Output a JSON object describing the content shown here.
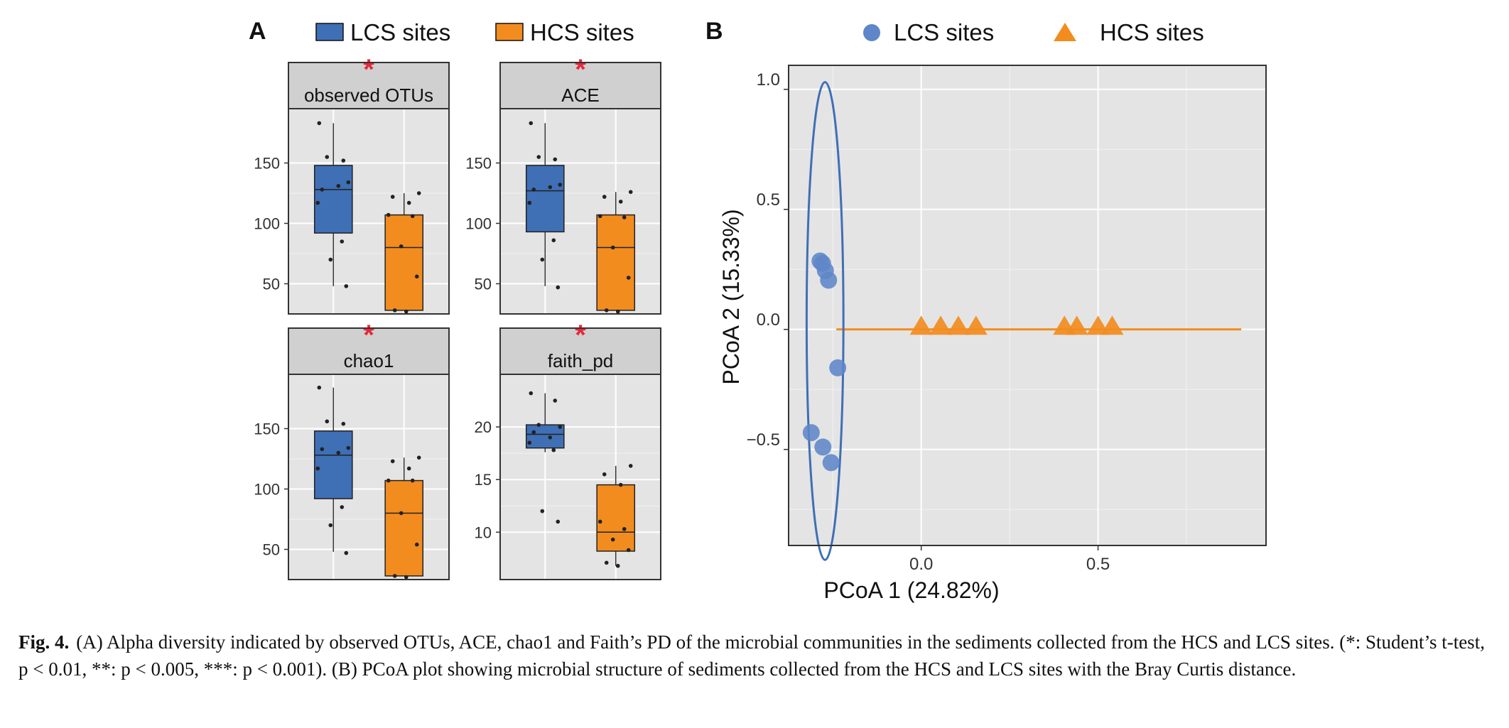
{
  "colors": {
    "lcs": "#3f6fb5",
    "hcs": "#f28c1f",
    "lcs_point": "#5e86c8",
    "star": "#e8263a",
    "panel_bg": "#e4e4e4",
    "strip_bg": "#d0d0d0"
  },
  "chart_data": [
    {
      "type": "box",
      "panel_letter": "A",
      "legend": [
        "LCS sites",
        "HCS sites"
      ],
      "legend_placement": "top",
      "grid": true,
      "facets": [
        {
          "title": "observed OTUs",
          "significance": "*",
          "ylim": [
            25,
            195
          ],
          "yticks": [
            50,
            100,
            150
          ],
          "ytick_labels": [
            "50",
            "100",
            "150"
          ],
          "series": [
            {
              "name": "LCS sites",
              "q1": 92,
              "median": 128,
              "q3": 148,
              "whisker_low": 48,
              "whisker_high": 183,
              "points": [
                183,
                152,
                155,
                134,
                128,
                131,
                117,
                85,
                70,
                48
              ]
            },
            {
              "name": "HCS sites",
              "q1": 28,
              "median": 80,
              "q3": 107,
              "whisker_low": 28,
              "whisker_high": 125,
              "points": [
                125,
                122,
                117,
                107,
                106,
                81,
                56,
                28,
                27
              ]
            }
          ]
        },
        {
          "title": "ACE",
          "significance": "*",
          "ylim": [
            25,
            195
          ],
          "yticks": [
            50,
            100,
            150
          ],
          "ytick_labels": [
            "50",
            "100",
            "150"
          ],
          "series": [
            {
              "name": "LCS sites",
              "q1": 93,
              "median": 127,
              "q3": 148,
              "whisker_low": 48,
              "whisker_high": 183,
              "points": [
                183,
                153,
                155,
                132,
                128,
                130,
                117,
                86,
                70,
                47
              ]
            },
            {
              "name": "HCS sites",
              "q1": 28,
              "median": 80,
              "q3": 107,
              "whisker_low": 28,
              "whisker_high": 126,
              "points": [
                126,
                122,
                118,
                106,
                105,
                80,
                55,
                28,
                27
              ]
            }
          ]
        },
        {
          "title": "chao1",
          "significance": "*",
          "ylim": [
            25,
            195
          ],
          "yticks": [
            50,
            100,
            150
          ],
          "ytick_labels": [
            "50",
            "100",
            "150"
          ],
          "series": [
            {
              "name": "LCS sites",
              "q1": 92,
              "median": 128,
              "q3": 148,
              "whisker_low": 48,
              "whisker_high": 184,
              "points": [
                184,
                154,
                156,
                134,
                133,
                130,
                117,
                85,
                70,
                47
              ]
            },
            {
              "name": "HCS sites",
              "q1": 28,
              "median": 80,
              "q3": 107,
              "whisker_low": 28,
              "whisker_high": 126,
              "points": [
                126,
                123,
                117,
                107,
                107,
                80,
                54,
                28,
                27
              ]
            }
          ]
        },
        {
          "title": "faith_pd",
          "significance": "*",
          "ylim": [
            5.5,
            25.0
          ],
          "yticks": [
            10,
            15,
            20
          ],
          "ytick_labels": [
            "10",
            "15",
            "20"
          ],
          "series": [
            {
              "name": "LCS sites",
              "q1": 18.0,
              "median": 19.3,
              "q3": 20.2,
              "whisker_low": 17.6,
              "whisker_high": 23.2,
              "points": [
                23.2,
                22.5,
                20.2,
                20.0,
                19.5,
                19.0,
                18.5,
                17.8,
                12.0,
                11.0
              ]
            },
            {
              "name": "HCS sites",
              "q1": 8.2,
              "median": 10.0,
              "q3": 14.5,
              "whisker_low": 6.8,
              "whisker_high": 16.3,
              "points": [
                16.3,
                15.5,
                14.5,
                11.0,
                10.3,
                9.3,
                8.3,
                7.1,
                6.8
              ]
            }
          ]
        }
      ]
    },
    {
      "type": "scatter",
      "panel_letter": "B",
      "legend": [
        "LCS sites",
        "HCS sites"
      ],
      "legend_placement": "top",
      "grid": true,
      "xlabel": "PCoA 1 (24.82%)",
      "ylabel": "PCoA 2 (15.33%)",
      "xlim": [
        -0.375,
        0.975
      ],
      "ylim": [
        -0.9,
        1.1
      ],
      "xticks": [
        0.0,
        0.5
      ],
      "xtick_labels": [
        "0.0",
        "0.5"
      ],
      "yticks": [
        -0.5,
        0.0,
        0.5,
        1.0
      ],
      "ytick_labels": [
        "−0.5",
        "0.0",
        "0.5",
        "1.0"
      ],
      "series": [
        {
          "name": "LCS sites",
          "marker": "circle",
          "x": [
            -0.286,
            -0.279,
            -0.271,
            -0.262,
            -0.236,
            -0.311,
            -0.278,
            -0.255
          ],
          "y": [
            0.285,
            0.275,
            0.245,
            0.205,
            -0.16,
            -0.43,
            -0.49,
            -0.555
          ]
        },
        {
          "name": "HCS sites",
          "marker": "triangle",
          "x": [
            0.0,
            0.055,
            0.105,
            0.155,
            0.405,
            0.44,
            0.5,
            0.54
          ],
          "y": [
            0.01,
            0.01,
            0.01,
            0.01,
            0.01,
            0.01,
            0.01,
            0.01
          ]
        }
      ],
      "ellipse": {
        "series": "LCS sites",
        "cx": -0.272,
        "cy": 0.035,
        "rx": 0.052,
        "ry": 0.995
      },
      "spread_line": {
        "series": "HCS sites",
        "x1": -0.24,
        "x2": 0.905,
        "y": 0.0
      }
    }
  ],
  "caption": {
    "label": "Fig. 4.",
    "text": "(A) Alpha diversity indicated by observed OTUs, ACE, chao1 and Faith’s PD of the microbial communities in the sediments collected from the HCS and LCS sites. (*: Student’s t-test, p < 0.01, **: p < 0.005, ***: p < 0.001). (B) PCoA plot showing microbial structure of sediments collected from the HCS and LCS sites with the Bray Curtis distance."
  }
}
